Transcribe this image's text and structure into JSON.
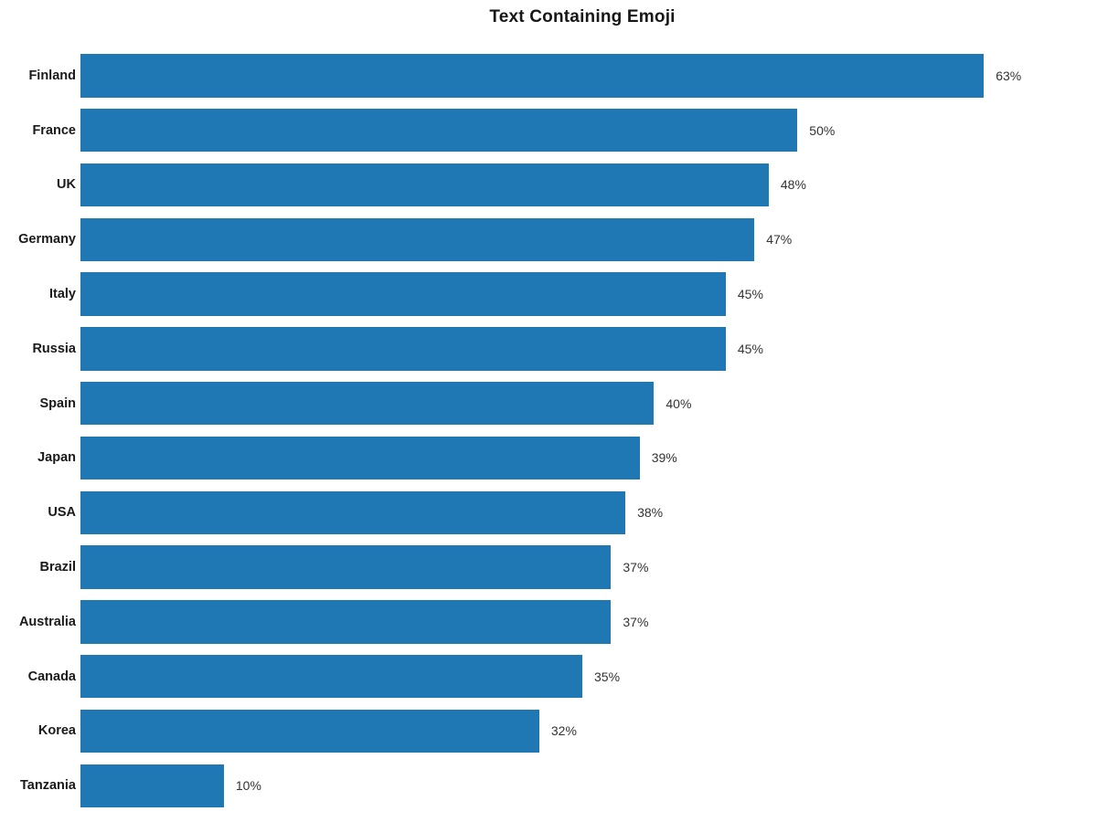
{
  "chart_data": {
    "type": "bar",
    "orientation": "horizontal",
    "title": "Text Containing Emoji",
    "xlabel": "",
    "ylabel": "",
    "categories": [
      "Finland",
      "France",
      "UK",
      "Germany",
      "Italy",
      "Russia",
      "Spain",
      "Japan",
      "USA",
      "Brazil",
      "Australia",
      "Canada",
      "Korea",
      "Tanzania"
    ],
    "values": [
      63,
      50,
      48,
      47,
      45,
      45,
      40,
      39,
      38,
      37,
      37,
      35,
      32,
      10
    ],
    "value_labels": [
      "63%",
      "50%",
      "48%",
      "47%",
      "45%",
      "45%",
      "40%",
      "39%",
      "38%",
      "37%",
      "37%",
      "35%",
      "32%",
      "10%"
    ],
    "xlim": [
      0,
      70
    ],
    "bar_color": "#1f77b4",
    "grid": false,
    "legend": false,
    "axes_visible": false
  }
}
